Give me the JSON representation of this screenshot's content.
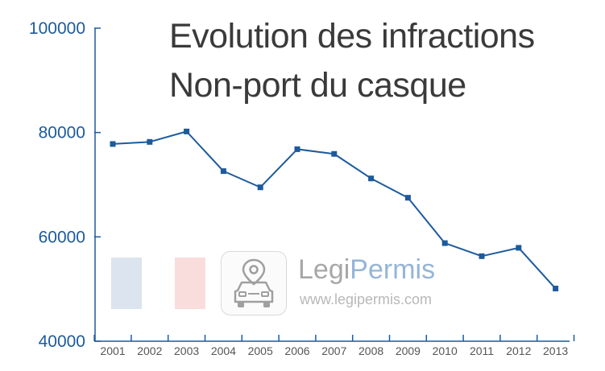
{
  "chart_data": {
    "type": "line",
    "title": "Evolution des infractions",
    "subtitle": "Non-port du casque",
    "xlabel": "",
    "ylabel": "",
    "x": [
      "2001",
      "2002",
      "2003",
      "2004",
      "2005",
      "2006",
      "2007",
      "2008",
      "2009",
      "2010",
      "2011",
      "2012",
      "2013"
    ],
    "series": [
      {
        "values": [
          77800,
          78200,
          80200,
          72600,
          69500,
          76800,
          75900,
          71200,
          67500,
          58800,
          56300,
          57900,
          50100
        ]
      }
    ],
    "ylim": [
      40000,
      100000
    ],
    "yticks": [
      40000,
      60000,
      80000,
      100000
    ],
    "ytick_labels": [
      "40000",
      "60000",
      "80000",
      "100000"
    ],
    "grid": false,
    "line_color": "#1d5a9c",
    "axis_color": "#1d5a9c"
  },
  "watermark": {
    "brand_part1": "Legi",
    "brand_part2": "Permis",
    "url": "www.legipermis.com",
    "icon": "car-location-icon"
  }
}
